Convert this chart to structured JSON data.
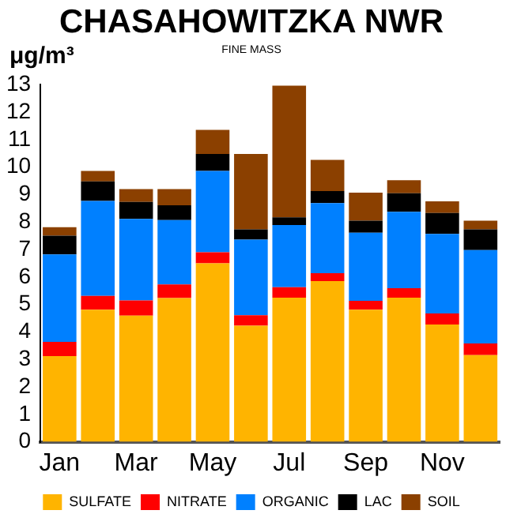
{
  "chart_data": {
    "type": "bar",
    "title": "CHASAHOWITZKA NWR",
    "subtitle": "FINE MASS",
    "ylabel": "μg/m³",
    "categories": [
      "Jan",
      null,
      "Mar",
      null,
      "May",
      null,
      "Jul",
      null,
      "Sep",
      null,
      "Nov",
      null
    ],
    "stacked": true,
    "ylim": [
      0,
      13
    ],
    "yticks": [
      0,
      1,
      2,
      3,
      4,
      5,
      6,
      7,
      8,
      9,
      10,
      11,
      12,
      13
    ],
    "grid": false,
    "legend": "bottom",
    "series": [
      {
        "name": "SULFATE",
        "color": "#ffb400",
        "values": [
          3.12,
          4.81,
          4.59,
          5.23,
          6.5,
          4.23,
          5.25,
          5.85,
          4.81,
          5.25,
          4.27,
          3.16
        ]
      },
      {
        "name": "NITRATE",
        "color": "#ff0000",
        "values": [
          0.52,
          0.5,
          0.56,
          0.5,
          0.4,
          0.38,
          0.38,
          0.29,
          0.32,
          0.34,
          0.4,
          0.42
        ]
      },
      {
        "name": "ORGANIC",
        "color": "#0080ff",
        "values": [
          3.18,
          3.46,
          2.96,
          2.34,
          2.96,
          2.75,
          2.26,
          2.55,
          2.48,
          2.78,
          2.9,
          3.4
        ]
      },
      {
        "name": "LAC",
        "color": "#000000",
        "values": [
          0.68,
          0.71,
          0.62,
          0.54,
          0.62,
          0.37,
          0.28,
          0.44,
          0.44,
          0.68,
          0.76,
          0.75
        ]
      },
      {
        "name": "SOIL",
        "color": "#8b4000",
        "values": [
          0.31,
          0.38,
          0.47,
          0.59,
          0.87,
          2.75,
          4.79,
          1.13,
          1.02,
          0.47,
          0.42,
          0.32
        ]
      }
    ]
  }
}
